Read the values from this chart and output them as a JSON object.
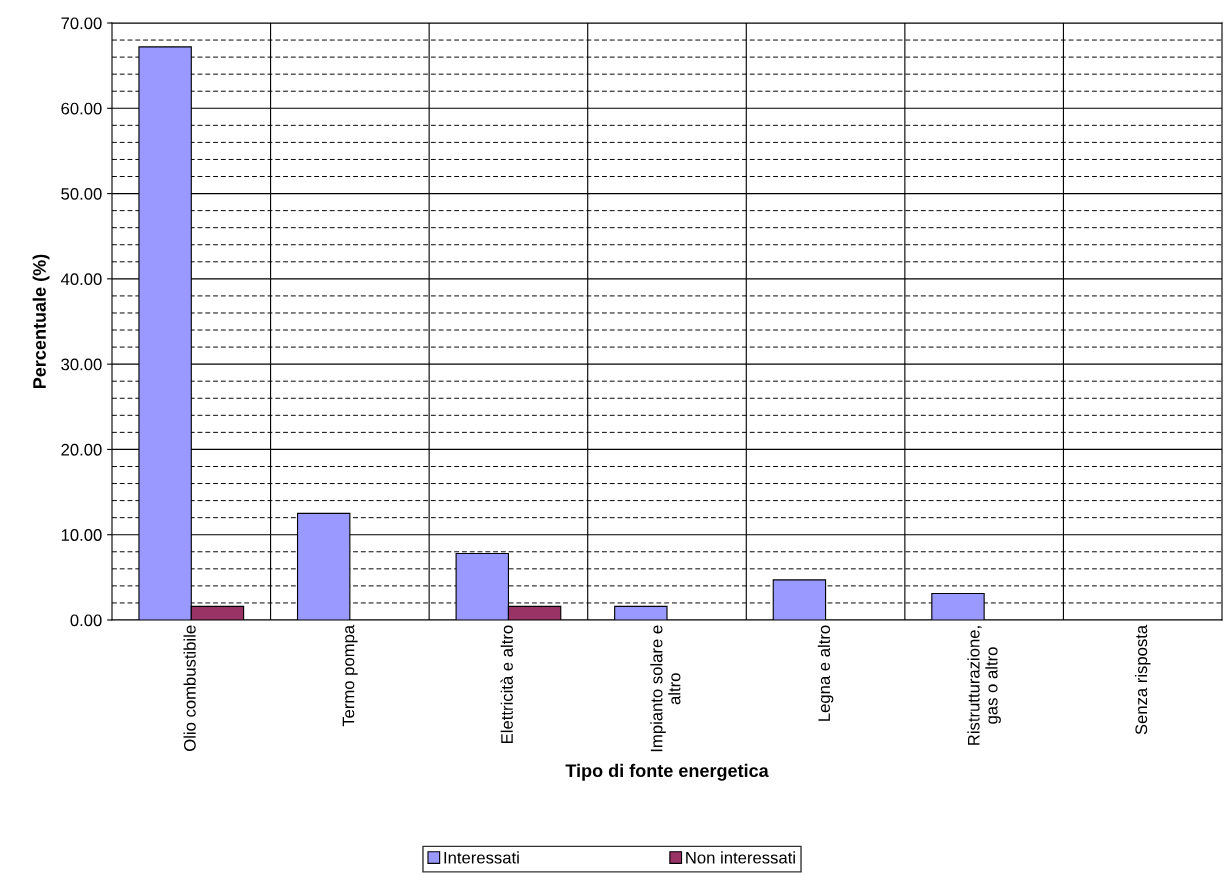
{
  "chart_data": {
    "type": "bar",
    "xlabel": "Tipo di fonte energetica",
    "ylabel": "Percentuale (%)",
    "categories": [
      "Olio combustibile",
      "Termo pompa",
      "Elettricità e altro",
      "Impianto solare e\naltro",
      "Legna e altro",
      "Ristrutturazione,\ngas o altro",
      "Senza risposta"
    ],
    "series": [
      {
        "name": "Interessati",
        "color": "#9999ff",
        "values": [
          67.2,
          12.5,
          7.8,
          1.6,
          4.7,
          3.1,
          null
        ]
      },
      {
        "name": "Non interessati",
        "color": "#993366",
        "values": [
          1.6,
          null,
          1.6,
          null,
          null,
          null,
          null
        ]
      }
    ],
    "ylim": [
      0,
      70
    ],
    "yticks": [
      {
        "value": 0,
        "label": "0.00"
      },
      {
        "value": 2,
        "label": null
      },
      {
        "value": 4,
        "label": null
      },
      {
        "value": 6,
        "label": null
      },
      {
        "value": 8,
        "label": null
      },
      {
        "value": 10,
        "label": "10.00"
      },
      {
        "value": 12,
        "label": null
      },
      {
        "value": 14,
        "label": null
      },
      {
        "value": 16,
        "label": null
      },
      {
        "value": 18,
        "label": null
      },
      {
        "value": 20,
        "label": "20.00"
      },
      {
        "value": 22,
        "label": null
      },
      {
        "value": 24,
        "label": null
      },
      {
        "value": 26,
        "label": null
      },
      {
        "value": 28,
        "label": null
      },
      {
        "value": 30,
        "label": "30.00"
      },
      {
        "value": 32,
        "label": null
      },
      {
        "value": 34,
        "label": null
      },
      {
        "value": 36,
        "label": null
      },
      {
        "value": 38,
        "label": null
      },
      {
        "value": 40,
        "label": "40.00"
      },
      {
        "value": 42,
        "label": null
      },
      {
        "value": 44,
        "label": null
      },
      {
        "value": 46,
        "label": null
      },
      {
        "value": 48,
        "label": null
      },
      {
        "value": 50,
        "label": "50.00"
      },
      {
        "value": 52,
        "label": null
      },
      {
        "value": 54,
        "label": null
      },
      {
        "value": 56,
        "label": null
      },
      {
        "value": 58,
        "label": null
      },
      {
        "value": 60,
        "label": "60.00"
      },
      {
        "value": 62,
        "label": null
      },
      {
        "value": 64,
        "label": null
      },
      {
        "value": 66,
        "label": null
      },
      {
        "value": 68,
        "label": null
      },
      {
        "value": 70,
        "label": "70.00"
      }
    ],
    "grid": true,
    "legend": "bottom"
  }
}
